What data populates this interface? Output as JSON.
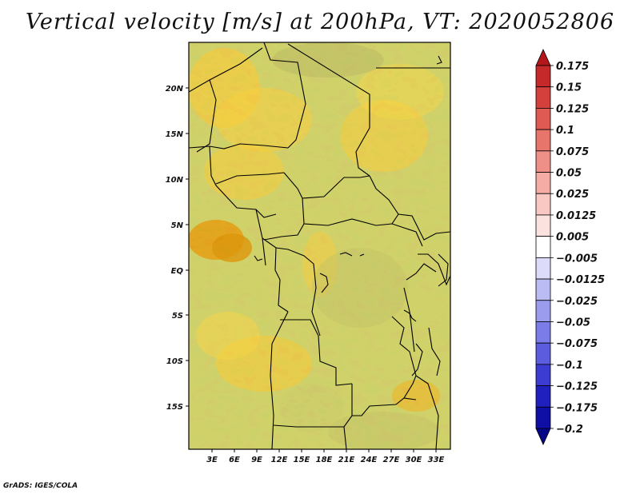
{
  "title": "Vertical velocity [m/s] at 200hPa, VT: 2020052806",
  "footer": "GrADS: IGES/COLA",
  "map": {
    "lon_labels": [
      "3E",
      "6E",
      "9E",
      "12E",
      "15E",
      "18E",
      "21E",
      "24E",
      "27E",
      "30E",
      "33E"
    ],
    "lat_labels": [
      "20N",
      "15N",
      "10N",
      "5N",
      "EQ",
      "5S",
      "10S",
      "15S"
    ],
    "lon_range": [
      0,
      35
    ],
    "lat_range": [
      -20,
      25
    ],
    "field": "vertical velocity",
    "level": "200hPa"
  },
  "colorbar": {
    "labels": [
      "0.175",
      "0.15",
      "0.125",
      "0.1",
      "0.075",
      "0.05",
      "0.025",
      "0.0125",
      "0.005",
      "−0.005",
      "−0.0125",
      "−0.025",
      "−0.05",
      "−0.075",
      "−0.1",
      "−0.125",
      "−0.175",
      "−0.2"
    ],
    "colors": [
      "#b3171c",
      "#c6292a",
      "#d4403c",
      "#df5a53",
      "#e8756c",
      "#ef9088",
      "#f5aca4",
      "#f9c8c2",
      "#fce2de",
      "#ffffff",
      "#dcdcfa",
      "#bcbcf5",
      "#9c9cef",
      "#7c7ce8",
      "#5c5cdf",
      "#3c3cd2",
      "#2020bf",
      "#0f0fa5",
      "#05058a"
    ]
  }
}
